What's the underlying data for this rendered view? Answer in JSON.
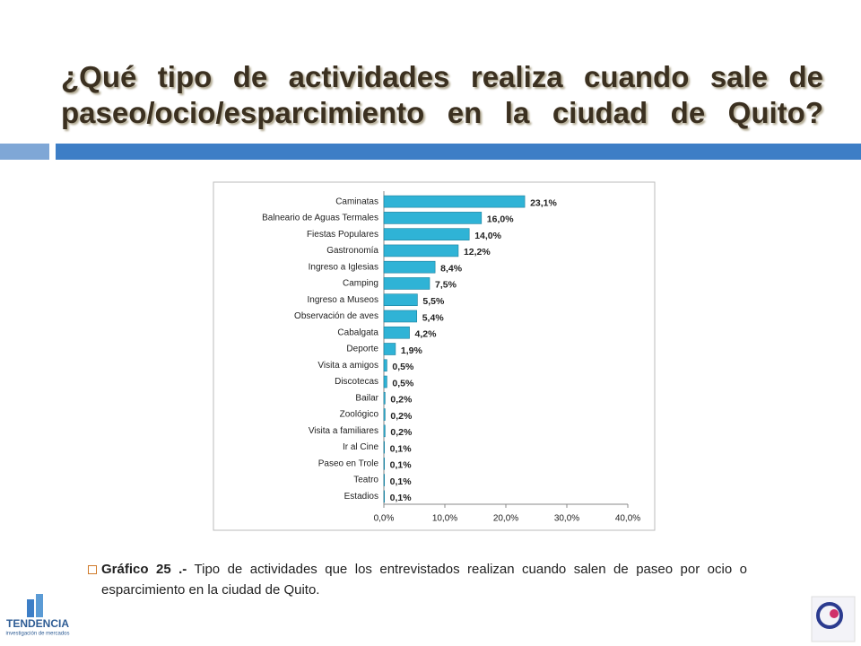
{
  "slide_title": "¿Qué tipo de actividades realiza cuando sale de paseo/ocio/esparcimiento en la ciudad de Quito?",
  "caption_label": "Gráfico 25 .-",
  "caption_text": "Tipo de actividades que los entrevistados realizan cuando salen de paseo por ocio o esparcimiento en la ciudad de Quito.",
  "logo_name": "TENDENCIA",
  "logo_tagline": "investigación de mercados",
  "chart_data": {
    "type": "hbar",
    "categories": [
      "Caminatas",
      "Balneario de Aguas Termales",
      "Fiestas Populares",
      "Gastronomía",
      "Ingreso a Iglesias",
      "Camping",
      "Ingreso a Museos",
      "Observación de aves",
      "Cabalgata",
      "Deporte",
      "Visita a amigos",
      "Discotecas",
      "Bailar",
      "Zoológico",
      "Visita a familiares",
      "Ir al Cine",
      "Paseo en Trole",
      "Teatro",
      "Estadios"
    ],
    "values": [
      23.1,
      16.0,
      14.0,
      12.2,
      8.4,
      7.5,
      5.5,
      5.4,
      4.2,
      1.9,
      0.5,
      0.5,
      0.2,
      0.2,
      0.2,
      0.1,
      0.1,
      0.1,
      0.1
    ],
    "value_labels": [
      "23,1%",
      "16,0%",
      "14,0%",
      "12,2%",
      "8,4%",
      "7,5%",
      "5,5%",
      "5,4%",
      "4,2%",
      "1,9%",
      "0,5%",
      "0,5%",
      "0,2%",
      "0,2%",
      "0,2%",
      "0,1%",
      "0,1%",
      "0,1%",
      "0,1%"
    ],
    "color": "#2fb3d6",
    "xlim": [
      0,
      40
    ],
    "xticks": [
      {
        "value": 0,
        "label": "0,0%"
      },
      {
        "value": 10,
        "label": "10,0%"
      },
      {
        "value": 20,
        "label": "20,0%"
      },
      {
        "value": 30,
        "label": "30,0%"
      },
      {
        "value": 40,
        "label": "40,0%"
      }
    ]
  }
}
